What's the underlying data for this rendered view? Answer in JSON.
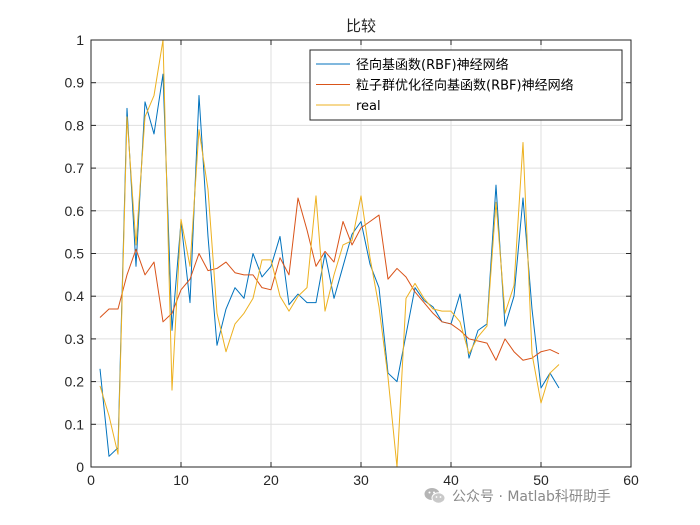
{
  "chart_data": {
    "type": "line",
    "title": "比较",
    "xlabel": "",
    "ylabel": "",
    "xlim": [
      0,
      60
    ],
    "ylim": [
      0,
      1
    ],
    "xticks": [
      0,
      10,
      20,
      30,
      40,
      50,
      60
    ],
    "yticks": [
      0,
      0.1,
      0.2,
      0.3,
      0.4,
      0.5,
      0.6,
      0.7,
      0.8,
      0.9,
      1
    ],
    "grid": true,
    "legend_position": "top-right",
    "x": [
      1,
      2,
      3,
      4,
      5,
      6,
      7,
      8,
      9,
      10,
      11,
      12,
      13,
      14,
      15,
      16,
      17,
      18,
      19,
      20,
      21,
      22,
      23,
      24,
      25,
      26,
      27,
      28,
      29,
      30,
      31,
      32,
      33,
      34,
      35,
      36,
      37,
      38,
      39,
      40,
      41,
      42,
      43,
      44,
      45,
      46,
      47,
      48,
      49,
      50,
      51,
      52
    ],
    "series": [
      {
        "name": "径向基函数(RBF)神经网络",
        "color": "#0072BD",
        "values": [
          0.23,
          0.025,
          0.045,
          0.84,
          0.47,
          0.855,
          0.78,
          0.92,
          0.32,
          0.575,
          0.385,
          0.87,
          0.54,
          0.285,
          0.37,
          0.42,
          0.395,
          0.5,
          0.445,
          0.47,
          0.54,
          0.38,
          0.405,
          0.385,
          0.385,
          0.5,
          0.395,
          0.47,
          0.545,
          0.575,
          0.475,
          0.42,
          0.22,
          0.2,
          0.31,
          0.42,
          0.39,
          0.375,
          0.34,
          0.335,
          0.405,
          0.255,
          0.32,
          0.335,
          0.66,
          0.33,
          0.4,
          0.63,
          0.37,
          0.185,
          0.22,
          0.185
        ]
      },
      {
        "name": "粒子群优化径向基函数(RBF)神经网络",
        "color": "#D95319",
        "values": [
          0.35,
          0.37,
          0.37,
          0.45,
          0.51,
          0.45,
          0.48,
          0.34,
          0.36,
          0.415,
          0.44,
          0.5,
          0.46,
          0.465,
          0.48,
          0.455,
          0.45,
          0.45,
          0.42,
          0.415,
          0.49,
          0.45,
          0.63,
          0.555,
          0.47,
          0.505,
          0.48,
          0.575,
          0.52,
          0.56,
          0.575,
          0.59,
          0.44,
          0.465,
          0.445,
          0.41,
          0.385,
          0.36,
          0.34,
          0.335,
          0.32,
          0.3,
          0.295,
          0.29,
          0.25,
          0.3,
          0.27,
          0.25,
          0.255,
          0.27,
          0.275,
          0.265
        ]
      },
      {
        "name": "real",
        "color": "#EDB120",
        "values": [
          0.19,
          0.12,
          0.03,
          0.82,
          0.52,
          0.82,
          0.87,
          1.0,
          0.18,
          0.58,
          0.47,
          0.79,
          0.65,
          0.36,
          0.27,
          0.335,
          0.36,
          0.395,
          0.485,
          0.485,
          0.4,
          0.365,
          0.4,
          0.42,
          0.635,
          0.365,
          0.45,
          0.52,
          0.53,
          0.635,
          0.49,
          0.375,
          0.21,
          0.0,
          0.395,
          0.43,
          0.395,
          0.37,
          0.365,
          0.365,
          0.34,
          0.265,
          0.305,
          0.33,
          0.62,
          0.36,
          0.425,
          0.76,
          0.265,
          0.15,
          0.22,
          0.24
        ]
      }
    ]
  },
  "watermark": {
    "icon": "wechat-icon",
    "text": "公众号 · Matlab科研助手"
  }
}
